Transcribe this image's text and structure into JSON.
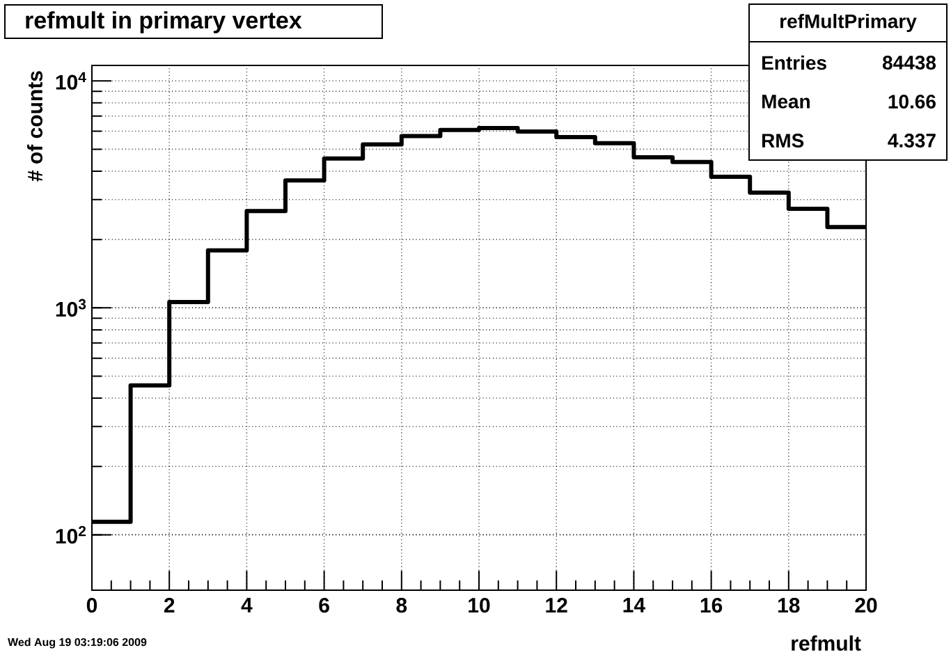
{
  "chart_data": {
    "type": "histogram",
    "title": "refmult in primary vertex",
    "xlabel": "refmult",
    "ylabel": "# of counts",
    "bins": [
      0,
      1,
      2,
      3,
      4,
      5,
      6,
      7,
      8,
      9,
      10,
      11,
      12,
      13,
      14,
      15,
      16,
      17,
      18,
      19,
      20
    ],
    "values": [
      114,
      455,
      1060,
      1790,
      2670,
      3640,
      4550,
      5250,
      5710,
      6080,
      6200,
      5980,
      5650,
      5310,
      4610,
      4390,
      3780,
      3220,
      2730,
      2270
    ],
    "color": "#000000",
    "log": "y",
    "grid": true,
    "xlim": [
      0,
      20
    ],
    "xticks": [
      0,
      2,
      4,
      6,
      8,
      10,
      12,
      14,
      16,
      18,
      20
    ],
    "ylim": [
      57,
      11700
    ],
    "yticks": [
      {
        "value": 100,
        "label": "10$^{2}$"
      },
      {
        "value": 1000,
        "label": "10$^{3}$"
      },
      {
        "value": 10000,
        "label": "10$^{4}$"
      }
    ],
    "annotations": [
      "refMultPrimary",
      "Entries",
      "84438",
      "Mean",
      "10.66",
      "RMS",
      "4.337",
      "Wed Aug 19 03:19:06 2009"
    ]
  }
}
